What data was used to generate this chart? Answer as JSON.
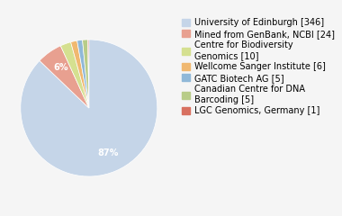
{
  "labels": [
    "University of Edinburgh [346]",
    "Mined from GenBank, NCBI [24]",
    "Centre for Biodiversity\nGenomics [10]",
    "Wellcome Sanger Institute [6]",
    "GATC Biotech AG [5]",
    "Canadian Centre for DNA\nBarcoding [5]",
    "LGC Genomics, Germany [1]"
  ],
  "values": [
    346,
    24,
    10,
    6,
    5,
    5,
    1
  ],
  "colors": [
    "#c5d5e8",
    "#e8a090",
    "#d5e090",
    "#f0b870",
    "#90b8d8",
    "#b8cc88",
    "#d87060"
  ],
  "autopct_threshold": 3.5,
  "background_color": "#f5f5f5",
  "text_color": "#ffffff",
  "fontsize": 7,
  "legend_fontsize": 7
}
